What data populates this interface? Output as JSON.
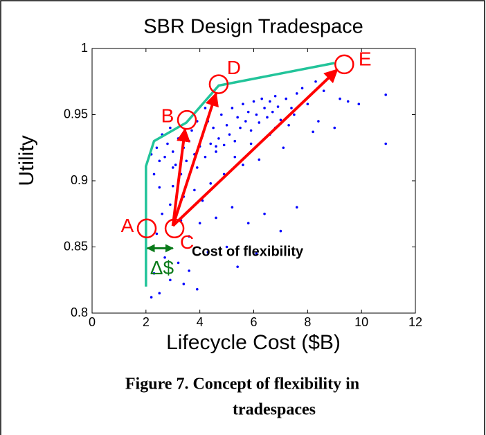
{
  "chart_data": {
    "type": "scatter",
    "title": "SBR Design Tradespace",
    "xlabel": "Lifecycle Cost ($B)",
    "ylabel": "Utility",
    "xlim": [
      0,
      12
    ],
    "ylim": [
      0.8,
      1
    ],
    "xticks": [
      0,
      2,
      4,
      6,
      8,
      10,
      12
    ],
    "yticks": [
      0.8,
      0.85,
      0.9,
      0.95,
      1
    ],
    "series": [
      {
        "color": "#0000ff",
        "x": [
          2.2,
          2.4,
          2.5,
          2.6,
          2.7,
          2.8,
          2.9,
          3.0,
          3.1,
          3.2,
          3.3,
          3.4,
          3.5,
          3.6,
          3.7,
          3.8,
          3.9,
          4.0,
          4.1,
          4.2,
          4.3,
          4.4,
          4.5,
          4.6,
          4.7,
          4.8,
          4.9,
          5.0,
          5.1,
          5.2,
          5.3,
          5.4,
          5.5,
          5.6,
          5.7,
          5.8,
          5.9,
          6.0,
          6.1,
          6.2,
          6.3,
          6.4,
          6.5,
          6.6,
          6.7,
          6.8,
          6.9,
          7.0,
          7.2,
          7.4,
          7.6,
          7.8,
          8.0,
          8.3,
          8.6,
          8.9,
          9.2,
          9.5,
          9.9,
          10.9,
          10.9,
          8.2,
          7.1,
          6.2,
          5.6,
          4.9,
          4.4,
          3.8,
          3.4,
          4.1,
          3.0,
          2.6,
          2.9,
          3.3,
          2.4,
          3.6,
          4.0,
          4.6,
          5.2,
          5.8,
          6.4,
          7.0,
          7.6,
          6.1,
          5.0,
          4.3,
          3.2,
          2.7,
          2.3,
          2.5,
          2.9,
          3.4,
          3.9,
          2.2,
          3.6,
          5.4,
          4.6,
          5.3,
          5.9,
          6.6,
          7.3,
          3.9,
          4.2,
          3.0,
          2.3,
          2.5,
          6.8,
          7.5,
          8.4,
          9.0
        ],
        "values": [
          0.92,
          0.925,
          0.915,
          0.935,
          0.918,
          0.928,
          0.94,
          0.922,
          0.912,
          0.932,
          0.905,
          0.925,
          0.915,
          0.93,
          0.938,
          0.92,
          0.91,
          0.926,
          0.934,
          0.918,
          0.945,
          0.928,
          0.94,
          0.922,
          0.932,
          0.95,
          0.927,
          0.942,
          0.935,
          0.955,
          0.93,
          0.948,
          0.94,
          0.958,
          0.945,
          0.952,
          0.938,
          0.96,
          0.95,
          0.944,
          0.962,
          0.955,
          0.948,
          0.96,
          0.952,
          0.964,
          0.956,
          0.946,
          0.962,
          0.955,
          0.966,
          0.97,
          0.958,
          0.975,
          0.968,
          0.98,
          0.962,
          0.96,
          0.958,
          0.965,
          0.928,
          0.937,
          0.925,
          0.916,
          0.912,
          0.905,
          0.898,
          0.893,
          0.888,
          0.885,
          0.896,
          0.875,
          0.882,
          0.87,
          0.86,
          0.858,
          0.868,
          0.872,
          0.88,
          0.868,
          0.875,
          0.862,
          0.88,
          0.845,
          0.85,
          0.846,
          0.838,
          0.842,
          0.83,
          0.815,
          0.825,
          0.822,
          0.818,
          0.812,
          0.832,
          0.835,
          0.926,
          0.918,
          0.928,
          0.935,
          0.942,
          0.945,
          0.955,
          0.91,
          0.905,
          0.895,
          0.94,
          0.95,
          0.945,
          0.94
        ]
      }
    ],
    "frontier": {
      "color": "#22c49a",
      "x": [
        2.0,
        2.0,
        2.3,
        3.5,
        4.7,
        9.0
      ],
      "values": [
        0.82,
        0.911,
        0.93,
        0.944,
        0.972,
        0.989
      ]
    },
    "designs": [
      {
        "label": "A",
        "x": 2.03,
        "y": 0.864
      },
      {
        "label": "B",
        "x": 3.52,
        "y": 0.946
      },
      {
        "label": "C",
        "x": 3.06,
        "y": 0.864
      },
      {
        "label": "D",
        "x": 4.7,
        "y": 0.973
      },
      {
        "label": "E",
        "x": 9.36,
        "y": 0.988
      }
    ],
    "design_color": "#ff0000",
    "arrows": [
      {
        "x1": 3.0,
        "y1": 0.866,
        "x2": 3.45,
        "y2": 0.939
      },
      {
        "x1": 3.0,
        "y1": 0.866,
        "x2": 4.6,
        "y2": 0.966
      },
      {
        "x1": 3.0,
        "y1": 0.866,
        "x2": 9.1,
        "y2": 0.984
      }
    ],
    "delta": {
      "label": "Δ$",
      "x1": 2.05,
      "x2": 3.0,
      "y": 0.849,
      "color": "#0a7a1a"
    },
    "note": {
      "text": "Cost of flexibility",
      "x": 3.7,
      "y": 0.846
    }
  },
  "caption": [
    "Figure 7. Concept of flexibility in",
    "tradespaces"
  ]
}
